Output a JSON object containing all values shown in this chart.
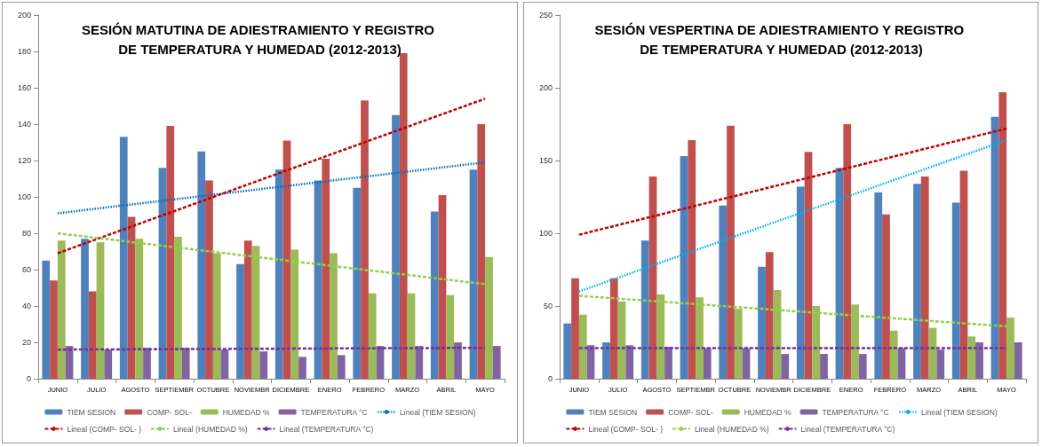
{
  "chart_data": [
    {
      "type": "bar",
      "title": "SESIÓN MATUTINA DE ADIESTRAMIENTO Y REGISTRO DE TEMPERATURA Y HUMEDAD (2012-2013)",
      "categories": [
        "JUNIO",
        "JULIO",
        "AGOSTO",
        "SEPTIEMBR",
        "OCTUBRE",
        "NOVIEMBR",
        "DICIEMBRE",
        "ENERO",
        "FEBRERO",
        "MARZO",
        "ABRIL",
        "MAYO"
      ],
      "series": [
        {
          "name": "TIEM SESION",
          "color": "#4f81bd",
          "values": [
            65,
            77,
            133,
            116,
            125,
            63,
            115,
            109,
            105,
            145,
            92,
            115
          ]
        },
        {
          "name": "COMP- SOL-",
          "color": "#c0504d",
          "values": [
            54,
            48,
            89,
            139,
            109,
            76,
            131,
            121,
            153,
            179,
            101,
            140
          ]
        },
        {
          "name": "HUMEDAD %",
          "color": "#9bbb59",
          "values": [
            76,
            75,
            77,
            78,
            69,
            73,
            71,
            69,
            47,
            47,
            46,
            67
          ]
        },
        {
          "name": "TEMPERATURA °C",
          "color": "#8064a2",
          "values": [
            18,
            16,
            17,
            17,
            16,
            15,
            12,
            13,
            18,
            18,
            20,
            18
          ]
        },
        {
          "name": "Lineal (TIEM SESION)",
          "type": "line",
          "color": "#0070c0",
          "line_style": "dotted",
          "x": [
            "JUNIO",
            "MAYO"
          ],
          "values": [
            91,
            119
          ]
        },
        {
          "name": "Lineal (COMP- SOL- )",
          "type": "line",
          "color": "#c00000",
          "line_style": "dashed",
          "x": [
            "JUNIO",
            "MAYO"
          ],
          "values": [
            69,
            154
          ]
        },
        {
          "name": "Lineal (HUMEDAD %)",
          "type": "line",
          "color": "#92d050",
          "line_style": "dashed",
          "x": [
            "JUNIO",
            "MAYO"
          ],
          "values": [
            80,
            52
          ]
        },
        {
          "name": "Lineal (TEMPERATURA °C)",
          "type": "line",
          "color": "#7030a0",
          "line_style": "dashed",
          "x": [
            "JUNIO",
            "MAYO"
          ],
          "values": [
            16,
            17
          ]
        }
      ],
      "ylim": [
        0,
        200
      ],
      "yticks": [
        0,
        20,
        40,
        60,
        80,
        100,
        120,
        140,
        160,
        180,
        200
      ],
      "grid": false,
      "legend": "bottom",
      "marker": "none"
    },
    {
      "type": "bar",
      "title": "SESIÓN VESPERTINA DE ADIESTRAMIENTO Y REGISTRO DE TEMPERATURA Y HUMEDAD (2012-2013)",
      "categories": [
        "JUNIO",
        "JULIO",
        "AGOSTO",
        "SEPTIEMBR",
        "OCTUBRE",
        "NOVIEMBR",
        "DICIEMBRE",
        "ENERO",
        "FEBRERO",
        "MARZO",
        "ABRIL",
        "MAYO"
      ],
      "series": [
        {
          "name": "TIEM SESION",
          "color": "#4f81bd",
          "values": [
            38,
            25,
            95,
            153,
            119,
            77,
            132,
            145,
            128,
            134,
            121,
            180
          ]
        },
        {
          "name": "COMP- SOL-",
          "color": "#c0504d",
          "values": [
            69,
            69,
            139,
            164,
            174,
            87,
            156,
            175,
            113,
            139,
            143,
            197
          ]
        },
        {
          "name": "HUMEDAD %",
          "color": "#9bbb59",
          "values": [
            44,
            53,
            58,
            56,
            48,
            61,
            50,
            51,
            33,
            35,
            29,
            42
          ]
        },
        {
          "name": "TEMPERATURA °C",
          "color": "#8064a2",
          "values": [
            23,
            23,
            22,
            21,
            21,
            17,
            17,
            17,
            21,
            20,
            25,
            25
          ]
        },
        {
          "name": "Lineal (TIEM SESION)",
          "type": "line",
          "color": "#00b0f0",
          "line_style": "dotted",
          "x": [
            "JUNIO",
            "MAYO"
          ],
          "values": [
            60,
            164
          ]
        },
        {
          "name": "Lineal (COMP- SOL- )",
          "type": "line",
          "color": "#c00000",
          "line_style": "dashed",
          "x": [
            "JUNIO",
            "MAYO"
          ],
          "values": [
            99,
            172
          ]
        },
        {
          "name": "Lineal (HUMEDAD %)",
          "type": "line",
          "color": "#92d050",
          "line_style": "dashed",
          "x": [
            "JUNIO",
            "MAYO"
          ],
          "values": [
            57,
            36
          ]
        },
        {
          "name": "Lineal (TEMPERATURA °C)",
          "type": "line",
          "color": "#7030a0",
          "line_style": "dashed",
          "x": [
            "JUNIO",
            "MAYO"
          ],
          "values": [
            21,
            21
          ]
        }
      ],
      "ylim": [
        0,
        250
      ],
      "yticks": [
        0,
        50,
        100,
        150,
        200,
        250
      ],
      "grid": false,
      "legend": "bottom",
      "marker": "none"
    }
  ]
}
